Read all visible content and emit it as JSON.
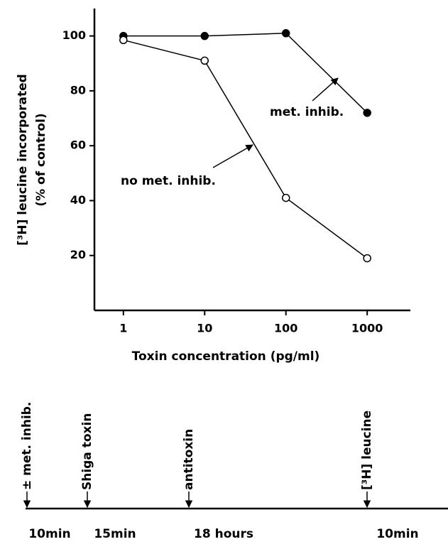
{
  "chart_data": {
    "type": "line",
    "x_label": "Toxin concentration (pg/ml)",
    "y_label": [
      "[³H] leucine incorporated",
      "(% of control)"
    ],
    "x": [
      1,
      10,
      100,
      1000
    ],
    "xscale": "log",
    "xlim": [
      0.44,
      3400
    ],
    "xticks": [
      1,
      10,
      100,
      1000
    ],
    "ylim": [
      0,
      110
    ],
    "yticks": [
      20,
      40,
      60,
      80,
      100
    ],
    "series": [
      {
        "name": "met. inhib.",
        "color": "#000000",
        "marker_fill": "#000000",
        "values": [
          100,
          100,
          101,
          72
        ]
      },
      {
        "name": "no met. inhib.",
        "color": "#000000",
        "marker_fill": "#ffffff",
        "values": [
          98.5,
          91,
          41,
          19
        ]
      }
    ]
  },
  "timeline": {
    "events": [
      "± met. inhib.",
      "Shiga toxin",
      "antitoxin",
      "[³H] leucine"
    ],
    "intervals": [
      "10min",
      "15min",
      "18 hours",
      "10min"
    ]
  }
}
